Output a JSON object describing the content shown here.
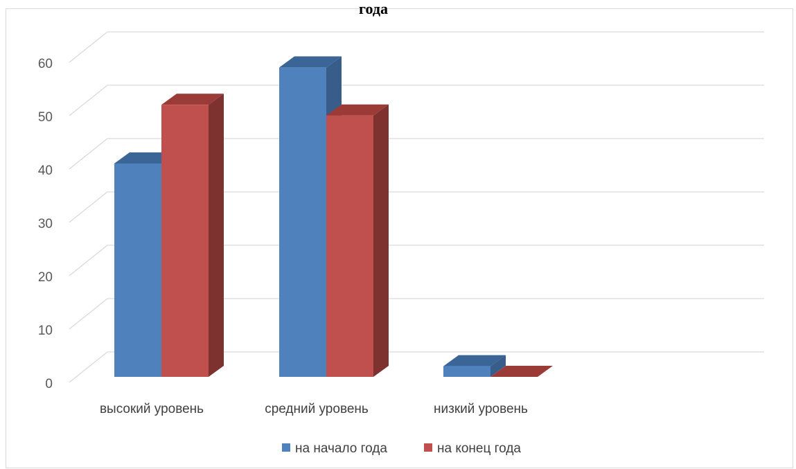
{
  "chart_data": {
    "type": "bar",
    "title": "года",
    "categories": [
      "высокий уровень",
      "средний уровень",
      "низкий уровень"
    ],
    "series": [
      {
        "name": "на начало года",
        "values": [
          40,
          58,
          2
        ],
        "color": "#4f81bd",
        "color_side": "#385d8a",
        "color_top": "#3a6596"
      },
      {
        "name": "на конец года",
        "values": [
          51,
          49,
          0
        ],
        "color": "#c0504d",
        "color_side": "#7d3230",
        "color_top": "#9b3b38"
      }
    ],
    "ylim": [
      0,
      60
    ],
    "yticks": [
      0,
      10,
      20,
      30,
      40,
      50,
      60
    ],
    "grid": true,
    "legend_position": "bottom",
    "style": "3d-clustered-column"
  }
}
